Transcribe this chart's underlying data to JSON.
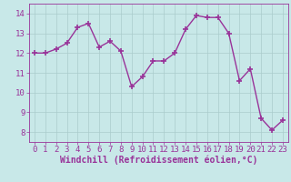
{
  "x": [
    0,
    1,
    2,
    3,
    4,
    5,
    6,
    7,
    8,
    9,
    10,
    11,
    12,
    13,
    14,
    15,
    16,
    17,
    18,
    19,
    20,
    21,
    22,
    23
  ],
  "y": [
    12.0,
    12.0,
    12.2,
    12.5,
    13.3,
    13.5,
    12.3,
    12.6,
    12.1,
    10.3,
    10.8,
    11.6,
    11.6,
    12.0,
    13.2,
    13.9,
    13.8,
    13.8,
    13.0,
    10.6,
    11.2,
    8.7,
    8.1,
    8.6
  ],
  "line_color": "#993399",
  "marker": "+",
  "marker_size": 4,
  "bg_color": "#c8e8e8",
  "grid_color": "#aacccc",
  "xlabel": "Windchill (Refroidissement éolien,°C)",
  "xlim": [
    -0.5,
    23.5
  ],
  "ylim": [
    7.5,
    14.5
  ],
  "yticks": [
    8,
    9,
    10,
    11,
    12,
    13,
    14
  ],
  "xticks": [
    0,
    1,
    2,
    3,
    4,
    5,
    6,
    7,
    8,
    9,
    10,
    11,
    12,
    13,
    14,
    15,
    16,
    17,
    18,
    19,
    20,
    21,
    22,
    23
  ],
  "tick_color": "#993399",
  "label_color": "#993399",
  "axis_color": "#993399",
  "font_size": 6.5,
  "xlabel_fontsize": 7,
  "line_width": 1.0,
  "marker_edge_width": 1.2
}
